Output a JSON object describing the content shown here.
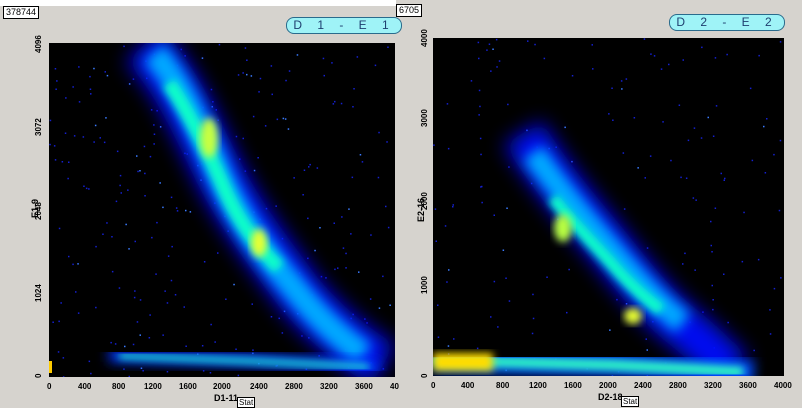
{
  "panel1": {
    "counter": "378744",
    "title": "D 1 - E 1",
    "x_title": "D1-11",
    "y_title": "E1-9",
    "x_ticks": [
      "0",
      "400",
      "800",
      "1200",
      "1600",
      "2000",
      "2400",
      "2800",
      "3200",
      "3600",
      "40"
    ],
    "y_ticks": [
      "0",
      "1024",
      "2048",
      "3072",
      "4096"
    ],
    "stat_label": "Stat"
  },
  "panel2": {
    "counter": "6705",
    "title": "D 2 - E 2",
    "x_title": "D2-18",
    "y_title": "E2-16",
    "x_ticks": [
      "0",
      "400",
      "800",
      "1200",
      "1600",
      "2000",
      "2400",
      "2800",
      "3200",
      "3600",
      "4000"
    ],
    "y_ticks": [
      "0",
      "1000",
      "2000",
      "3000",
      "4000"
    ],
    "stat_label": "Stat"
  },
  "colors": {
    "background": "#d6d3ce",
    "plot_bg": "#000000",
    "tag_fill": "#9ff3f7",
    "density_scale": [
      "#0000ff",
      "#00aaff",
      "#00ffcc",
      "#aaff44",
      "#ffff00"
    ]
  }
}
